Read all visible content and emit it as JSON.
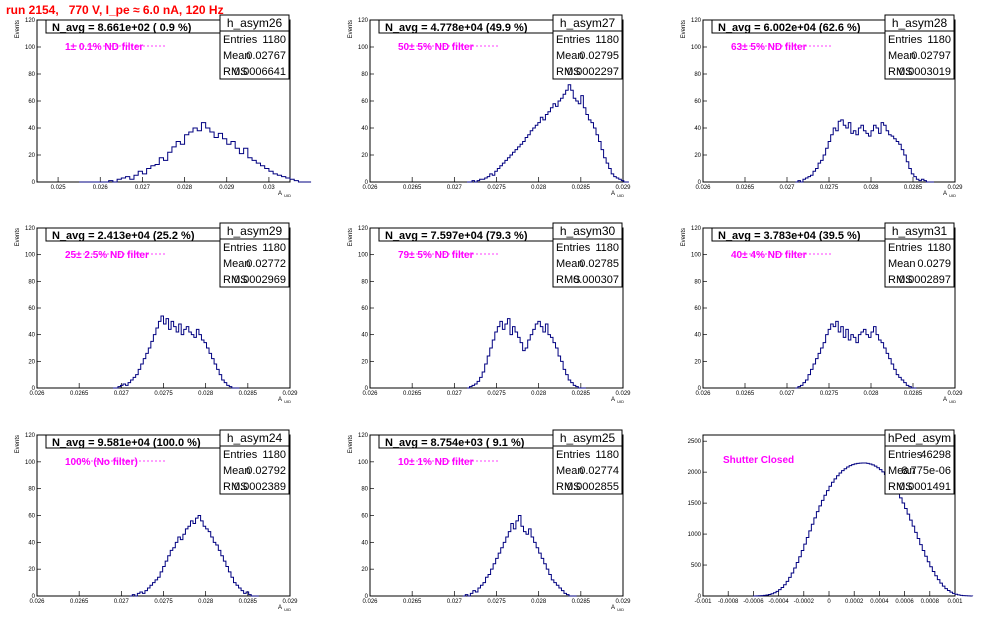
{
  "header": {
    "run_title": "run 2154,   770 V, I_pe ≈ 6.0 nA, 120 Hz"
  },
  "colors": {
    "title": "#ff0000",
    "histogram": "#000080",
    "filter_text": "#ff00ff",
    "dashed_line": "#ff00ff"
  },
  "chart_data": [
    {
      "type": "bar",
      "name": "h_asym26",
      "stats": {
        "entries_label": "Entries",
        "entries": "1180",
        "mean_label": "Mean",
        "mean": "0.02767",
        "rms_label": "RMS",
        "rms": "0.0006641"
      },
      "n_avg": "N_avg = 8.661e+02 ( 0.9 %)",
      "filter": "1± 0.1% ND filter",
      "xlabel": "A_UID",
      "ylabel": "Events",
      "xlim": [
        0.0245,
        0.0305
      ],
      "ylim": [
        0,
        120
      ],
      "xticks": [
        0.025,
        0.026,
        0.027,
        0.028,
        0.029,
        0.03
      ],
      "xtick_labels": [
        "0.025",
        "0.026",
        "0.027",
        "0.028",
        "0.029",
        "0.03"
      ],
      "yticks": [
        0,
        20,
        40,
        60,
        80,
        100,
        120
      ],
      "ytick_labels": [
        "0",
        "20",
        "40",
        "60",
        "80",
        "100",
        "120"
      ],
      "bins": {
        "start": 0.0255,
        "width": 0.0001,
        "counts": [
          0,
          0,
          0,
          0,
          0,
          0,
          0,
          1,
          0,
          2,
          3,
          4,
          2,
          5,
          8,
          6,
          10,
          12,
          13,
          18,
          16,
          22,
          26,
          30,
          28,
          35,
          37,
          40,
          38,
          44,
          40,
          37,
          33,
          36,
          32,
          28,
          30,
          25,
          21,
          25,
          18,
          16,
          14,
          12,
          10,
          8,
          6,
          5,
          4,
          3,
          2,
          1,
          0,
          0,
          0
        ]
      }
    },
    {
      "type": "bar",
      "name": "h_asym27",
      "stats": {
        "entries_label": "Entries",
        "entries": "1180",
        "mean_label": "Mean",
        "mean": "0.02795",
        "rms_label": "RMS",
        "rms": "0.0002297"
      },
      "n_avg": "N_avg = 4.778e+04 (49.9 %)",
      "filter": "50± 5% ND filter",
      "xlabel": "A_UID",
      "ylabel": "Events",
      "xlim": [
        0.026,
        0.029
      ],
      "ylim": [
        0,
        120
      ],
      "xticks": [
        0.026,
        0.0265,
        0.027,
        0.0275,
        0.028,
        0.0285,
        0.029
      ],
      "xtick_labels": [
        "0.026",
        "0.0265",
        "0.027",
        "0.0275",
        "0.028",
        "0.0285",
        "0.029"
      ],
      "yticks": [
        0,
        20,
        40,
        60,
        80,
        100,
        120
      ],
      "ytick_labels": [
        "0",
        "20",
        "40",
        "60",
        "80",
        "100",
        "120"
      ],
      "bins": {
        "start": 0.02715,
        "width": 3e-05,
        "counts": [
          0,
          0,
          1,
          0,
          1,
          2,
          2,
          3,
          4,
          6,
          5,
          8,
          10,
          12,
          14,
          16,
          18,
          20,
          22,
          24,
          26,
          28,
          30,
          33,
          35,
          38,
          40,
          42,
          44,
          48,
          46,
          50,
          52,
          55,
          58,
          56,
          60,
          62,
          65,
          68,
          72,
          68,
          62,
          60,
          58,
          64,
          55,
          50,
          46,
          44,
          40,
          35,
          30,
          24,
          18,
          14,
          10,
          6,
          4,
          3,
          2,
          1,
          0,
          0
        ]
      }
    },
    {
      "type": "bar",
      "name": "h_asym28",
      "stats": {
        "entries_label": "Entries",
        "entries": "1180",
        "mean_label": "Mean",
        "mean": "0.02797",
        "rms_label": "RMS",
        "rms": "0.0003019"
      },
      "n_avg": "N_avg = 6.002e+04 (62.6 %)",
      "filter": "63± 5% ND filter",
      "xlabel": "A_UID",
      "ylabel": "Events",
      "xlim": [
        0.026,
        0.029
      ],
      "ylim": [
        0,
        120
      ],
      "xticks": [
        0.026,
        0.0265,
        0.027,
        0.0275,
        0.028,
        0.0285,
        0.029
      ],
      "xtick_labels": [
        "0.026",
        "0.0265",
        "0.027",
        "0.0275",
        "0.028",
        "0.0285",
        "0.029"
      ],
      "yticks": [
        0,
        20,
        40,
        60,
        80,
        100,
        120
      ],
      "ytick_labels": [
        "0",
        "20",
        "40",
        "60",
        "80",
        "100",
        "120"
      ],
      "bins": {
        "start": 0.0271,
        "width": 3e-05,
        "counts": [
          0,
          1,
          0,
          2,
          3,
          4,
          5,
          8,
          10,
          14,
          16,
          20,
          25,
          30,
          35,
          40,
          38,
          45,
          46,
          42,
          40,
          44,
          36,
          38,
          35,
          40,
          42,
          38,
          36,
          34,
          38,
          42,
          40,
          36,
          44,
          42,
          38,
          35,
          34,
          32,
          30,
          28,
          24,
          20,
          15,
          10,
          6,
          4,
          2,
          1,
          2,
          1,
          0,
          0,
          0
        ]
      }
    },
    {
      "type": "bar",
      "name": "h_asym29",
      "stats": {
        "entries_label": "Entries",
        "entries": "1180",
        "mean_label": "Mean",
        "mean": "0.02772",
        "rms_label": "RMS",
        "rms": "0.0002969"
      },
      "n_avg": "N_avg = 2.413e+04 (25.2 %)",
      "filter": "25± 2.5% ND filter",
      "xlabel": "A_UID",
      "ylabel": "Events",
      "xlim": [
        0.026,
        0.029
      ],
      "ylim": [
        0,
        120
      ],
      "xticks": [
        0.026,
        0.0265,
        0.027,
        0.0275,
        0.028,
        0.0285,
        0.029
      ],
      "xtick_labels": [
        "0.026",
        "0.0265",
        "0.027",
        "0.0275",
        "0.028",
        "0.0285",
        "0.029"
      ],
      "yticks": [
        0,
        20,
        40,
        60,
        80,
        100,
        120
      ],
      "ytick_labels": [
        "0",
        "20",
        "40",
        "60",
        "80",
        "100",
        "120"
      ],
      "bins": {
        "start": 0.0269,
        "width": 3e-05,
        "counts": [
          0,
          0,
          1,
          2,
          3,
          2,
          4,
          6,
          8,
          10,
          14,
          18,
          22,
          26,
          30,
          35,
          40,
          45,
          50,
          54,
          48,
          52,
          44,
          50,
          46,
          42,
          48,
          40,
          44,
          46,
          42,
          40,
          38,
          44,
          40,
          36,
          34,
          30,
          26,
          22,
          18,
          14,
          10,
          6,
          4,
          2,
          1,
          0,
          0,
          0
        ]
      }
    },
    {
      "type": "bar",
      "name": "h_asym30",
      "stats": {
        "entries_label": "Entries",
        "entries": "1180",
        "mean_label": "Mean",
        "mean": "0.02785",
        "rms_label": "RMS",
        "rms": "0.000307"
      },
      "n_avg": "N_avg = 7.597e+04 (79.3 %)",
      "filter": "79± 5% ND filter",
      "xlabel": "A_UID",
      "ylabel": "Events",
      "xlim": [
        0.026,
        0.029
      ],
      "ylim": [
        0,
        120
      ],
      "xticks": [
        0.026,
        0.0265,
        0.027,
        0.0275,
        0.028,
        0.0285,
        0.029
      ],
      "xtick_labels": [
        "0.026",
        "0.0265",
        "0.027",
        "0.0275",
        "0.028",
        "0.0285",
        "0.029"
      ],
      "yticks": [
        0,
        20,
        40,
        60,
        80,
        100,
        120
      ],
      "ytick_labels": [
        "0",
        "20",
        "40",
        "60",
        "80",
        "100",
        "120"
      ],
      "bins": {
        "start": 0.02715,
        "width": 3e-05,
        "counts": [
          0,
          1,
          2,
          3,
          5,
          8,
          12,
          18,
          24,
          30,
          36,
          42,
          46,
          50,
          44,
          48,
          52,
          40,
          46,
          42,
          38,
          34,
          28,
          30,
          36,
          40,
          44,
          48,
          50,
          46,
          42,
          48,
          40,
          38,
          34,
          30,
          24,
          20,
          14,
          10,
          6,
          4,
          2,
          1,
          0,
          0,
          0
        ]
      }
    },
    {
      "type": "bar",
      "name": "h_asym31",
      "stats": {
        "entries_label": "Entries",
        "entries": "1180",
        "mean_label": "Mean",
        "mean": "0.0279",
        "rms_label": "RMS",
        "rms": "0.0002897"
      },
      "n_avg": "N_avg = 3.783e+04 (39.5 %)",
      "filter": "40± 4% ND filter",
      "xlabel": "A_UID",
      "ylabel": "Events",
      "xlim": [
        0.026,
        0.029
      ],
      "ylim": [
        0,
        120
      ],
      "xticks": [
        0.026,
        0.0265,
        0.027,
        0.0275,
        0.028,
        0.0285,
        0.029
      ],
      "xtick_labels": [
        "0.026",
        "0.0265",
        "0.027",
        "0.0275",
        "0.028",
        "0.0285",
        "0.029"
      ],
      "yticks": [
        0,
        20,
        40,
        60,
        80,
        100,
        120
      ],
      "ytick_labels": [
        "0",
        "20",
        "40",
        "60",
        "80",
        "100",
        "120"
      ],
      "bins": {
        "start": 0.0271,
        "width": 3e-05,
        "counts": [
          0,
          1,
          2,
          4,
          6,
          10,
          14,
          18,
          22,
          26,
          30,
          34,
          40,
          44,
          48,
          46,
          50,
          42,
          46,
          38,
          44,
          36,
          40,
          38,
          34,
          40,
          42,
          44,
          40,
          38,
          42,
          46,
          40,
          36,
          34,
          30,
          26,
          22,
          18,
          14,
          10,
          8,
          6,
          4,
          2,
          1,
          0,
          0
        ]
      }
    },
    {
      "type": "bar",
      "name": "h_asym24",
      "stats": {
        "entries_label": "Entries",
        "entries": "1180",
        "mean_label": "Mean",
        "mean": "0.02792",
        "rms_label": "RMS",
        "rms": "0.0002389"
      },
      "n_avg": "N_avg = 9.581e+04 (100.0 %)",
      "filter": "100% (No filter)",
      "xlabel": "A_UID",
      "ylabel": "Events",
      "xlim": [
        0.026,
        0.029
      ],
      "ylim": [
        0,
        120
      ],
      "xticks": [
        0.026,
        0.0265,
        0.027,
        0.0275,
        0.028,
        0.0285,
        0.029
      ],
      "xtick_labels": [
        "0.026",
        "0.0265",
        "0.027",
        "0.0275",
        "0.028",
        "0.0285",
        "0.029"
      ],
      "yticks": [
        0,
        20,
        40,
        60,
        80,
        100,
        120
      ],
      "ytick_labels": [
        "0",
        "20",
        "40",
        "60",
        "80",
        "100",
        "120"
      ],
      "bins": {
        "start": 0.0271,
        "width": 3e-05,
        "counts": [
          0,
          1,
          0,
          2,
          3,
          2,
          4,
          6,
          8,
          10,
          12,
          14,
          18,
          22,
          26,
          30,
          34,
          36,
          40,
          44,
          42,
          46,
          50,
          52,
          56,
          54,
          58,
          60,
          56,
          52,
          50,
          48,
          44,
          40,
          38,
          34,
          30,
          26,
          22,
          18,
          14,
          10,
          8,
          6,
          4,
          2,
          3,
          1,
          0,
          0,
          0
        ]
      }
    },
    {
      "type": "bar",
      "name": "h_asym25",
      "stats": {
        "entries_label": "Entries",
        "entries": "1180",
        "mean_label": "Mean",
        "mean": "0.02774",
        "rms_label": "RMS",
        "rms": "0.0002855"
      },
      "n_avg": "N_avg = 8.754e+03 ( 9.1 %)",
      "filter": "10± 1% ND filter",
      "xlabel": "A_UID",
      "ylabel": "Events",
      "xlim": [
        0.026,
        0.029
      ],
      "ylim": [
        0,
        120
      ],
      "xticks": [
        0.026,
        0.0265,
        0.027,
        0.0275,
        0.028,
        0.0285,
        0.029
      ],
      "xtick_labels": [
        "0.026",
        "0.0265",
        "0.027",
        "0.0275",
        "0.028",
        "0.0285",
        "0.029"
      ],
      "yticks": [
        0,
        20,
        40,
        60,
        80,
        100,
        120
      ],
      "ytick_labels": [
        "0",
        "20",
        "40",
        "60",
        "80",
        "100",
        "120"
      ],
      "bins": {
        "start": 0.0271,
        "width": 3e-05,
        "counts": [
          0,
          1,
          0,
          2,
          4,
          3,
          6,
          8,
          10,
          14,
          16,
          20,
          24,
          28,
          32,
          36,
          40,
          44,
          48,
          54,
          50,
          56,
          60,
          52,
          48,
          46,
          50,
          44,
          40,
          36,
          32,
          28,
          24,
          20,
          16,
          12,
          10,
          8,
          6,
          4,
          2,
          1,
          0,
          0,
          0
        ]
      }
    },
    {
      "type": "bar",
      "name": "hPed_asym",
      "stats": {
        "entries_label": "Entries",
        "entries": "46298",
        "mean_label": "Mean",
        "mean": "8.775e-06",
        "rms_label": "RMS",
        "rms": "0.0001491"
      },
      "n_avg": "",
      "filter": "Shutter Closed",
      "xlabel": "",
      "ylabel": "",
      "xlim": [
        -0.001,
        0.001
      ],
      "ylim": [
        0,
        2600
      ],
      "xticks": [
        -0.001,
        -0.0008,
        -0.0006,
        -0.0004,
        -0.0002,
        0,
        0.0002,
        0.0004,
        0.0006,
        0.0008,
        0.001
      ],
      "xtick_labels": [
        "-0.001",
        "-0.0008",
        "-0.0006",
        "-0.0004",
        "-0.0002",
        "0",
        "0.0002",
        "0.0004",
        "0.0006",
        "0.0008",
        "0.001"
      ],
      "yticks": [
        0,
        500,
        1000,
        1500,
        2000,
        2500
      ],
      "ytick_labels": [
        "0",
        "500",
        "1000",
        "1500",
        "2000",
        "2500"
      ],
      "bins": {
        "start": -0.0006,
        "width": 2e-05,
        "counts": [
          1,
          2,
          4,
          6,
          10,
          16,
          24,
          36,
          52,
          74,
          102,
          138,
          182,
          236,
          300,
          372,
          452,
          540,
          634,
          734,
          838,
          944,
          1052,
          1158,
          1262,
          1362,
          1456,
          1544,
          1626,
          1702,
          1772,
          1836,
          1892,
          1942,
          1986,
          2024,
          2056,
          2084,
          2106,
          2122,
          2134,
          2142,
          2146,
          2148,
          2147,
          2142,
          2132,
          2118,
          2098,
          2072,
          2040,
          2004,
          1962,
          1914,
          1860,
          1800,
          1734,
          1662,
          1584,
          1502,
          1414,
          1322,
          1226,
          1128,
          1028,
          928,
          830,
          734,
          642,
          554,
          472,
          396,
          326,
          264,
          208,
          160,
          120,
          88,
          62,
          42,
          28,
          18,
          11,
          6,
          3,
          2,
          1
        ]
      }
    }
  ]
}
